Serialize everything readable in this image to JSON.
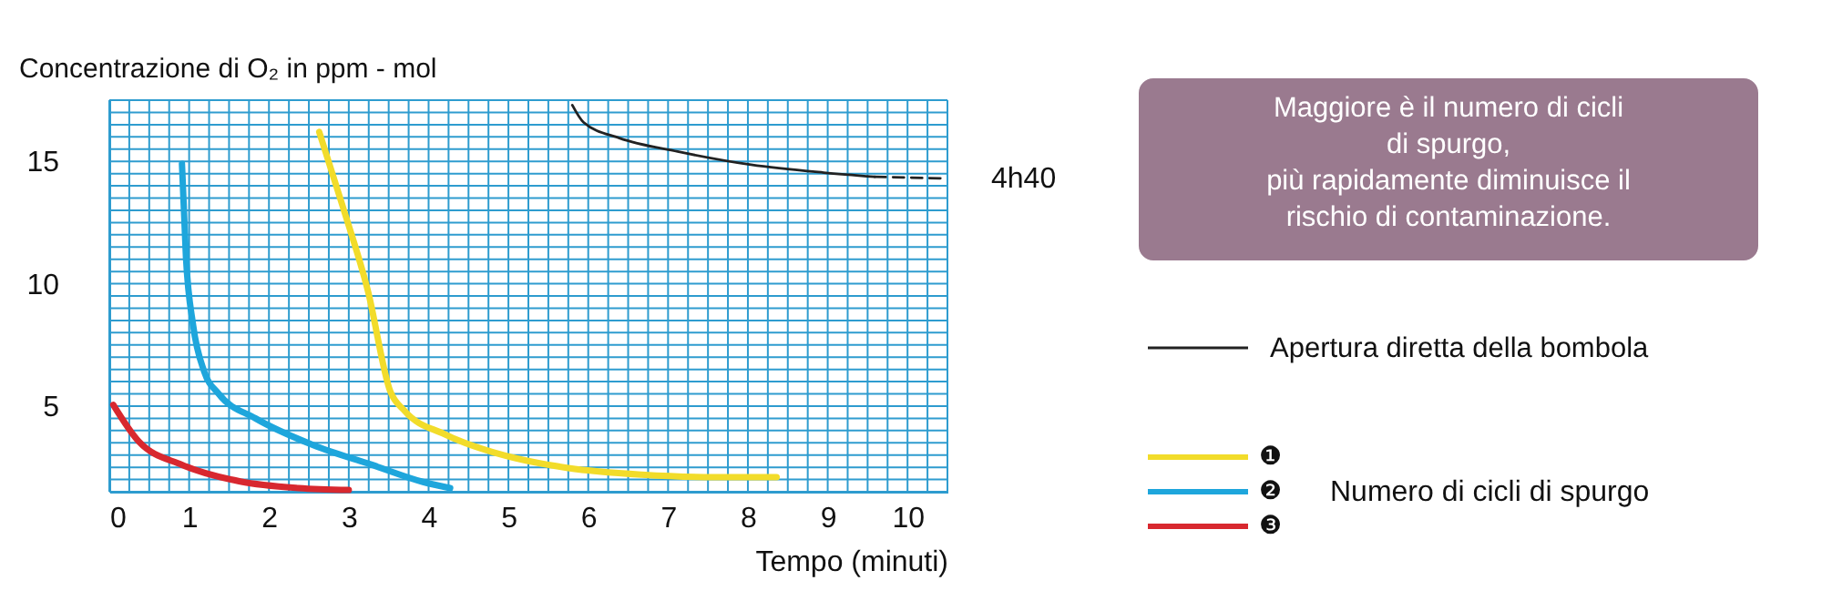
{
  "chart_data": {
    "type": "line",
    "xlabel": "Tempo (minuti)",
    "ylabel": "Concentrazione di O₂ in ppm - mol",
    "legend_title": "Numero di cicli di spurgo",
    "legend": "right",
    "grid": true,
    "marker": "none",
    "xlim": [
      0,
      10.5
    ],
    "ylim": [
      1.5,
      17.5
    ],
    "xticks": [
      0,
      {
        "value": 0.25,
        "label": null
      },
      {
        "value": 0.5,
        "label": null
      },
      {
        "value": 0.75,
        "label": null
      },
      1,
      {
        "value": 1.25,
        "label": null
      },
      {
        "value": 1.5,
        "label": null
      },
      {
        "value": 1.75,
        "label": null
      },
      2,
      {
        "value": 2.25,
        "label": null
      },
      {
        "value": 2.5,
        "label": null
      },
      {
        "value": 2.75,
        "label": null
      },
      3,
      {
        "value": 3.25,
        "label": null
      },
      {
        "value": 3.5,
        "label": null
      },
      {
        "value": 3.75,
        "label": null
      },
      4,
      {
        "value": 4.25,
        "label": null
      },
      {
        "value": 4.5,
        "label": null
      },
      {
        "value": 4.75,
        "label": null
      },
      5,
      {
        "value": 5.25,
        "label": null
      },
      {
        "value": 5.5,
        "label": null
      },
      {
        "value": 5.75,
        "label": null
      },
      6,
      {
        "value": 6.25,
        "label": null
      },
      {
        "value": 6.5,
        "label": null
      },
      {
        "value": 6.75,
        "label": null
      },
      7,
      {
        "value": 7.25,
        "label": null
      },
      {
        "value": 7.5,
        "label": null
      },
      {
        "value": 7.75,
        "label": null
      },
      8,
      {
        "value": 8.25,
        "label": null
      },
      {
        "value": 8.5,
        "label": null
      },
      {
        "value": 8.75,
        "label": null
      },
      9,
      {
        "value": 9.25,
        "label": null
      },
      {
        "value": 9.5,
        "label": null
      },
      {
        "value": 9.75,
        "label": null
      },
      10,
      {
        "value": 10.25,
        "label": null
      },
      {
        "value": 10.5,
        "label": null
      }
    ],
    "yticks": [
      {
        "value": 1.5,
        "label": null
      },
      {
        "value": 2,
        "label": null
      },
      {
        "value": 2.5,
        "label": null
      },
      {
        "value": 3,
        "label": null
      },
      {
        "value": 3.5,
        "label": null
      },
      {
        "value": 4,
        "label": null
      },
      {
        "value": 4.5,
        "label": null
      },
      5,
      {
        "value": 5.5,
        "label": null
      },
      {
        "value": 6,
        "label": null
      },
      {
        "value": 6.5,
        "label": null
      },
      {
        "value": 7,
        "label": null
      },
      {
        "value": 7.5,
        "label": null
      },
      {
        "value": 8,
        "label": null
      },
      {
        "value": 8.5,
        "label": null
      },
      {
        "value": 9,
        "label": null
      },
      {
        "value": 9.5,
        "label": null
      },
      10,
      {
        "value": 10.5,
        "label": null
      },
      {
        "value": 11,
        "label": null
      },
      {
        "value": 11.5,
        "label": null
      },
      {
        "value": 12,
        "label": null
      },
      {
        "value": 12.5,
        "label": null
      },
      {
        "value": 13,
        "label": null
      },
      {
        "value": 13.5,
        "label": null
      },
      {
        "value": 14,
        "label": null
      },
      {
        "value": 14.5,
        "label": null
      },
      15,
      {
        "value": 15.5,
        "label": null
      },
      {
        "value": 16,
        "label": null
      },
      {
        "value": 16.5,
        "label": null
      },
      {
        "value": 17,
        "label": null
      },
      {
        "value": 17.5,
        "label": null
      }
    ],
    "series": [
      {
        "name": "Apertura diretta della bombola",
        "color": "#222222",
        "line_style": "solid",
        "x": [
          5.8,
          5.94,
          6.39,
          7.12,
          8.04,
          8.95,
          9.59
        ],
        "values": [
          17.3,
          16.6,
          15.95,
          15.4,
          14.86,
          14.54,
          14.37
        ]
      },
      {
        "color": "#222222",
        "line_style": "dashed",
        "x": [
          9.59,
          10.5
        ],
        "values": [
          14.37,
          14.3
        ]
      },
      {
        "name": "❶",
        "color": "#f2dc2a",
        "line_style": "solid",
        "x": [
          2.63,
          2.92,
          3.24,
          3.52,
          3.7,
          4.2,
          4.93,
          5.75,
          6.67,
          7.58,
          8.36
        ],
        "values": [
          16.2,
          13.2,
          9.7,
          5.6,
          4.8,
          3.85,
          3.0,
          2.47,
          2.2,
          2.1,
          2.1
        ]
      },
      {
        "name": "❷",
        "color": "#1ea6dc",
        "line_style": "solid",
        "x": [
          0.91,
          0.96,
          1.05,
          1.19,
          1.37,
          1.83,
          2.56,
          3.29,
          3.93,
          4.27
        ],
        "values": [
          14.9,
          11.1,
          8.3,
          6.4,
          5.5,
          4.5,
          3.4,
          2.6,
          1.9,
          1.65
        ]
      },
      {
        "name": "❸",
        "color": "#d8282f",
        "line_style": "solid",
        "x": [
          0.05,
          0.37,
          0.91,
          1.64,
          2.37,
          3.0
        ],
        "values": [
          5.05,
          3.55,
          2.6,
          1.92,
          1.65,
          1.57
        ]
      }
    ],
    "annotations": [
      {
        "text": "4h40",
        "x": 10.5,
        "y": 14.3
      },
      "Maggiore è il numero di cicli\ndi spurgo,\npiù rapidamente diminuisce il\nrischio di contaminazione."
    ]
  }
}
